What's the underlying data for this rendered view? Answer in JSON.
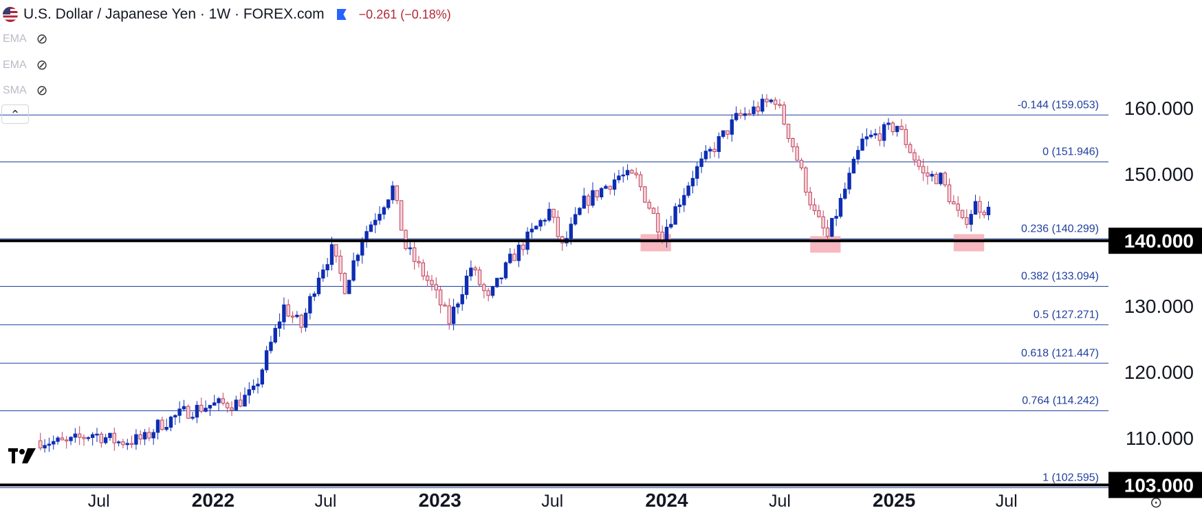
{
  "header": {
    "title": "U.S. Dollar / Japanese Yen · 1W · FOREX.com",
    "change": "−0.261 (−0.18%)"
  },
  "indicators": [
    {
      "label": "EMA",
      "visibility_icon": "eye-off-icon"
    },
    {
      "label": "EMA",
      "visibility_icon": "eye-off-icon"
    },
    {
      "label": "SMA",
      "visibility_icon": "eye-off-icon"
    }
  ],
  "controls": {
    "collapse_icon": "chevron-up-icon",
    "collapse_glyph": "⌃",
    "settings_icon": "settings-icon",
    "settings_glyph": "⊙"
  },
  "colors": {
    "up": "#0d2db3",
    "down": "#c0405a",
    "fib_line": "#1f3f9e",
    "fib_label": "#1f3f9e",
    "support": "#000000",
    "highlight": "#f4a0aa",
    "grid_text": "#131722"
  },
  "chart_data": {
    "type": "candlestick",
    "symbol": "USD/JPY",
    "interval": "1W",
    "ylim": [
      100.5,
      164.5
    ],
    "y_ticks": [
      "160.000",
      "150.000",
      "130.000",
      "120.000",
      "110.000"
    ],
    "price_tags": [
      {
        "value": 140.0,
        "label": "140.000"
      },
      {
        "value": 103.0,
        "label": "103.000"
      }
    ],
    "x_labels": [
      {
        "label": "Jul",
        "date": "2021-07-01",
        "bold": false
      },
      {
        "label": "2022",
        "date": "2022-01-01",
        "bold": true
      },
      {
        "label": "Jul",
        "date": "2022-07-01",
        "bold": false
      },
      {
        "label": "2023",
        "date": "2023-01-01",
        "bold": true
      },
      {
        "label": "Jul",
        "date": "2023-07-01",
        "bold": false
      },
      {
        "label": "2024",
        "date": "2024-01-01",
        "bold": true
      },
      {
        "label": "Jul",
        "date": "2024-07-01",
        "bold": false
      },
      {
        "label": "2025",
        "date": "2025-01-01",
        "bold": true
      },
      {
        "label": "Jul",
        "date": "2025-07-01",
        "bold": false
      }
    ],
    "fib_levels": [
      {
        "label": "-0.144 (159.053)",
        "value": 159.053
      },
      {
        "label": "0 (151.946)",
        "value": 151.946
      },
      {
        "label": "0.236 (140.299)",
        "value": 140.299
      },
      {
        "label": "0.382 (133.094)",
        "value": 133.094
      },
      {
        "label": "0.5 (127.271)",
        "value": 127.271
      },
      {
        "label": "0.618 (121.447)",
        "value": 121.447
      },
      {
        "label": "0.764 (114.242)",
        "value": 114.242
      },
      {
        "label": "1 (102.595)",
        "value": 102.595
      }
    ],
    "support_lines": [
      140.0,
      103.0
    ],
    "highlight_zones": [
      {
        "start": "2023-11-20",
        "end": "2024-01-08",
        "low": 138.4,
        "high": 141.0
      },
      {
        "start": "2024-08-19",
        "end": "2024-10-07",
        "low": 138.2,
        "high": 140.7
      },
      {
        "start": "2025-04-07",
        "end": "2025-05-26",
        "low": 138.4,
        "high": 141.0
      }
    ],
    "weekly_closes": [
      {
        "date": "2021-03-29",
        "close": 109.7
      },
      {
        "date": "2021-05-10",
        "close": 109.3
      },
      {
        "date": "2021-06-21",
        "close": 110.8
      },
      {
        "date": "2021-08-02",
        "close": 109.5
      },
      {
        "date": "2021-09-13",
        "close": 110.0
      },
      {
        "date": "2021-10-04",
        "close": 112.0
      },
      {
        "date": "2021-11-15",
        "close": 114.0
      },
      {
        "date": "2021-12-27",
        "close": 115.1
      },
      {
        "date": "2022-02-07",
        "close": 115.4
      },
      {
        "date": "2022-03-07",
        "close": 117.0
      },
      {
        "date": "2022-03-28",
        "close": 122.5
      },
      {
        "date": "2022-04-25",
        "close": 130.0
      },
      {
        "date": "2022-05-23",
        "close": 127.0
      },
      {
        "date": "2022-06-20",
        "close": 135.0
      },
      {
        "date": "2022-07-11",
        "close": 138.5
      },
      {
        "date": "2022-08-01",
        "close": 133.0
      },
      {
        "date": "2022-08-29",
        "close": 140.5
      },
      {
        "date": "2022-10-17",
        "close": 148.0
      },
      {
        "date": "2022-11-07",
        "close": 139.0
      },
      {
        "date": "2022-12-19",
        "close": 133.0
      },
      {
        "date": "2023-01-16",
        "close": 127.8
      },
      {
        "date": "2023-02-20",
        "close": 136.0
      },
      {
        "date": "2023-03-20",
        "close": 131.0
      },
      {
        "date": "2023-04-24",
        "close": 137.0
      },
      {
        "date": "2023-06-26",
        "close": 144.5
      },
      {
        "date": "2023-07-17",
        "close": 139.0
      },
      {
        "date": "2023-08-21",
        "close": 145.8
      },
      {
        "date": "2023-10-16",
        "close": 149.8
      },
      {
        "date": "2023-11-13",
        "close": 149.5
      },
      {
        "date": "2023-12-25",
        "close": 141.0
      },
      {
        "date": "2024-02-12",
        "close": 150.0
      },
      {
        "date": "2024-04-22",
        "close": 158.5
      },
      {
        "date": "2024-06-24",
        "close": 161.5
      },
      {
        "date": "2024-07-22",
        "close": 154.5
      },
      {
        "date": "2024-08-26",
        "close": 144.0
      },
      {
        "date": "2024-09-16",
        "close": 140.5
      },
      {
        "date": "2024-11-11",
        "close": 155.0
      },
      {
        "date": "2025-01-06",
        "close": 157.5
      },
      {
        "date": "2025-02-17",
        "close": 150.0
      },
      {
        "date": "2025-03-17",
        "close": 149.5
      },
      {
        "date": "2025-04-21",
        "close": 142.5
      },
      {
        "date": "2025-05-12",
        "close": 145.5
      },
      {
        "date": "2025-06-02",
        "close": 144.5
      }
    ]
  }
}
